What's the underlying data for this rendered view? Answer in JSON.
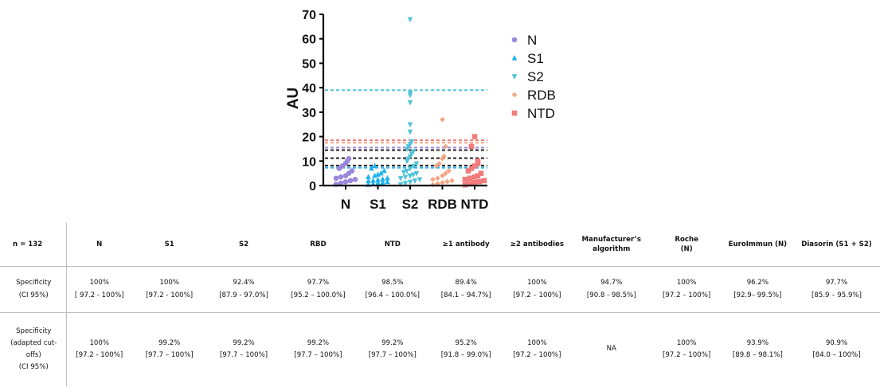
{
  "chart_data": {
    "type": "scatter",
    "ylabel": "AU",
    "ylim": [
      0,
      70
    ],
    "yticks": [
      0,
      10,
      20,
      30,
      40,
      50,
      60,
      70
    ],
    "categories": [
      "N",
      "S1",
      "S2",
      "RDB",
      "NTD"
    ],
    "series": [
      {
        "name": "N",
        "color": "#9b87d9",
        "marker": "circle",
        "cutoff": 15.5,
        "values": [
          0.5,
          1,
          1.5,
          2,
          2.5,
          3,
          3.5,
          4,
          5,
          6,
          7,
          8,
          9,
          10,
          11
        ]
      },
      {
        "name": "S1",
        "color": "#1fb0ef",
        "marker": "triangle-up",
        "cutoff": 7.3,
        "values": [
          0.3,
          0.6,
          1,
          1.2,
          1.5,
          1.8,
          2,
          2.3,
          2.6,
          3,
          3.5,
          4,
          4.5,
          5,
          6,
          7,
          8
        ]
      },
      {
        "name": "S2",
        "color": "#4fc3d9",
        "marker": "triangle-down",
        "cutoff": 39,
        "values": [
          0.5,
          1,
          1.5,
          2,
          2.5,
          3,
          3.5,
          4,
          4.5,
          5,
          5.5,
          6,
          7,
          8,
          9,
          10,
          11,
          12,
          13,
          14,
          15,
          16,
          17,
          18,
          22,
          25,
          34,
          37,
          38,
          68
        ]
      },
      {
        "name": "RDB",
        "color": "#f4a582",
        "marker": "diamond",
        "cutoff": 17.5,
        "values": [
          0.3,
          0.8,
          1.2,
          1.6,
          2,
          2.5,
          3,
          4,
          5,
          6,
          8,
          9,
          11,
          12,
          16,
          27
        ]
      },
      {
        "name": "NTD",
        "color": "#f27b7b",
        "marker": "square",
        "cutoff": 18.5,
        "values": [
          0.3,
          0.8,
          1.2,
          1.6,
          2,
          2.5,
          3,
          3.5,
          4,
          5,
          6,
          7,
          8,
          9,
          10,
          16,
          20
        ]
      }
    ],
    "extra_cutoffs": [
      {
        "value": 14.5,
        "color": "#222222"
      },
      {
        "value": 11.2,
        "color": "#222222"
      },
      {
        "value": 8.2,
        "color": "#222222"
      }
    ],
    "legend": "right"
  },
  "table": {
    "headers": [
      "n = 132",
      "N",
      "S1",
      "S2",
      "RBD",
      "NTD",
      "≥1 antibody",
      "≥2 antibodies",
      "Manufacturer’s\nalgorithm",
      "Roche\n(N)",
      "EuroImmun (N)",
      "Diasorin (S1 + S2)"
    ],
    "rows": [
      {
        "label": "Specificity\n(CI 95%)",
        "cells": [
          [
            "100%",
            "[ 97.2 - 100%]"
          ],
          [
            "100%",
            "[97.2 - 100%]"
          ],
          [
            "92.4%",
            "[87.9 - 97.0%]"
          ],
          [
            "97.7%",
            "[95.2 – 100.0%]"
          ],
          [
            "98.5%",
            "[96.4 – 100.0%]"
          ],
          [
            "89.4%",
            "[84.1 – 94.7%]"
          ],
          [
            "100%",
            "[97.2 – 100%]"
          ],
          [
            "94.7%",
            "[90.8 - 98.5%]"
          ],
          [
            "100%",
            "[97.2 – 100%]"
          ],
          [
            "96.2%",
            "[92.9– 99.5%]"
          ],
          [
            "97.7%",
            "[85.9 – 95.9%]"
          ]
        ]
      },
      {
        "label": "Specificity\n(adapted cut-\noffs)\n(CI 95%)",
        "cells": [
          [
            "100%",
            "[97.2 - 100%]"
          ],
          [
            "99.2%",
            "[97.7 – 100%]"
          ],
          [
            "99.2%",
            "[97.7 – 100%]"
          ],
          [
            "99.2%",
            "[97.7 – 100%]"
          ],
          [
            "99.2%",
            "[97.7 – 100%]"
          ],
          [
            "95.2%",
            "[91.8 – 99.0%]"
          ],
          [
            "100%",
            "[97.2 – 100%]"
          ],
          [
            "NA"
          ],
          [
            "100%",
            "[97.2 – 100%]"
          ],
          [
            "93.9%",
            "[89.8 – 98.1%]"
          ],
          [
            "90.9%",
            "[84.0 – 100%]"
          ]
        ]
      }
    ]
  }
}
